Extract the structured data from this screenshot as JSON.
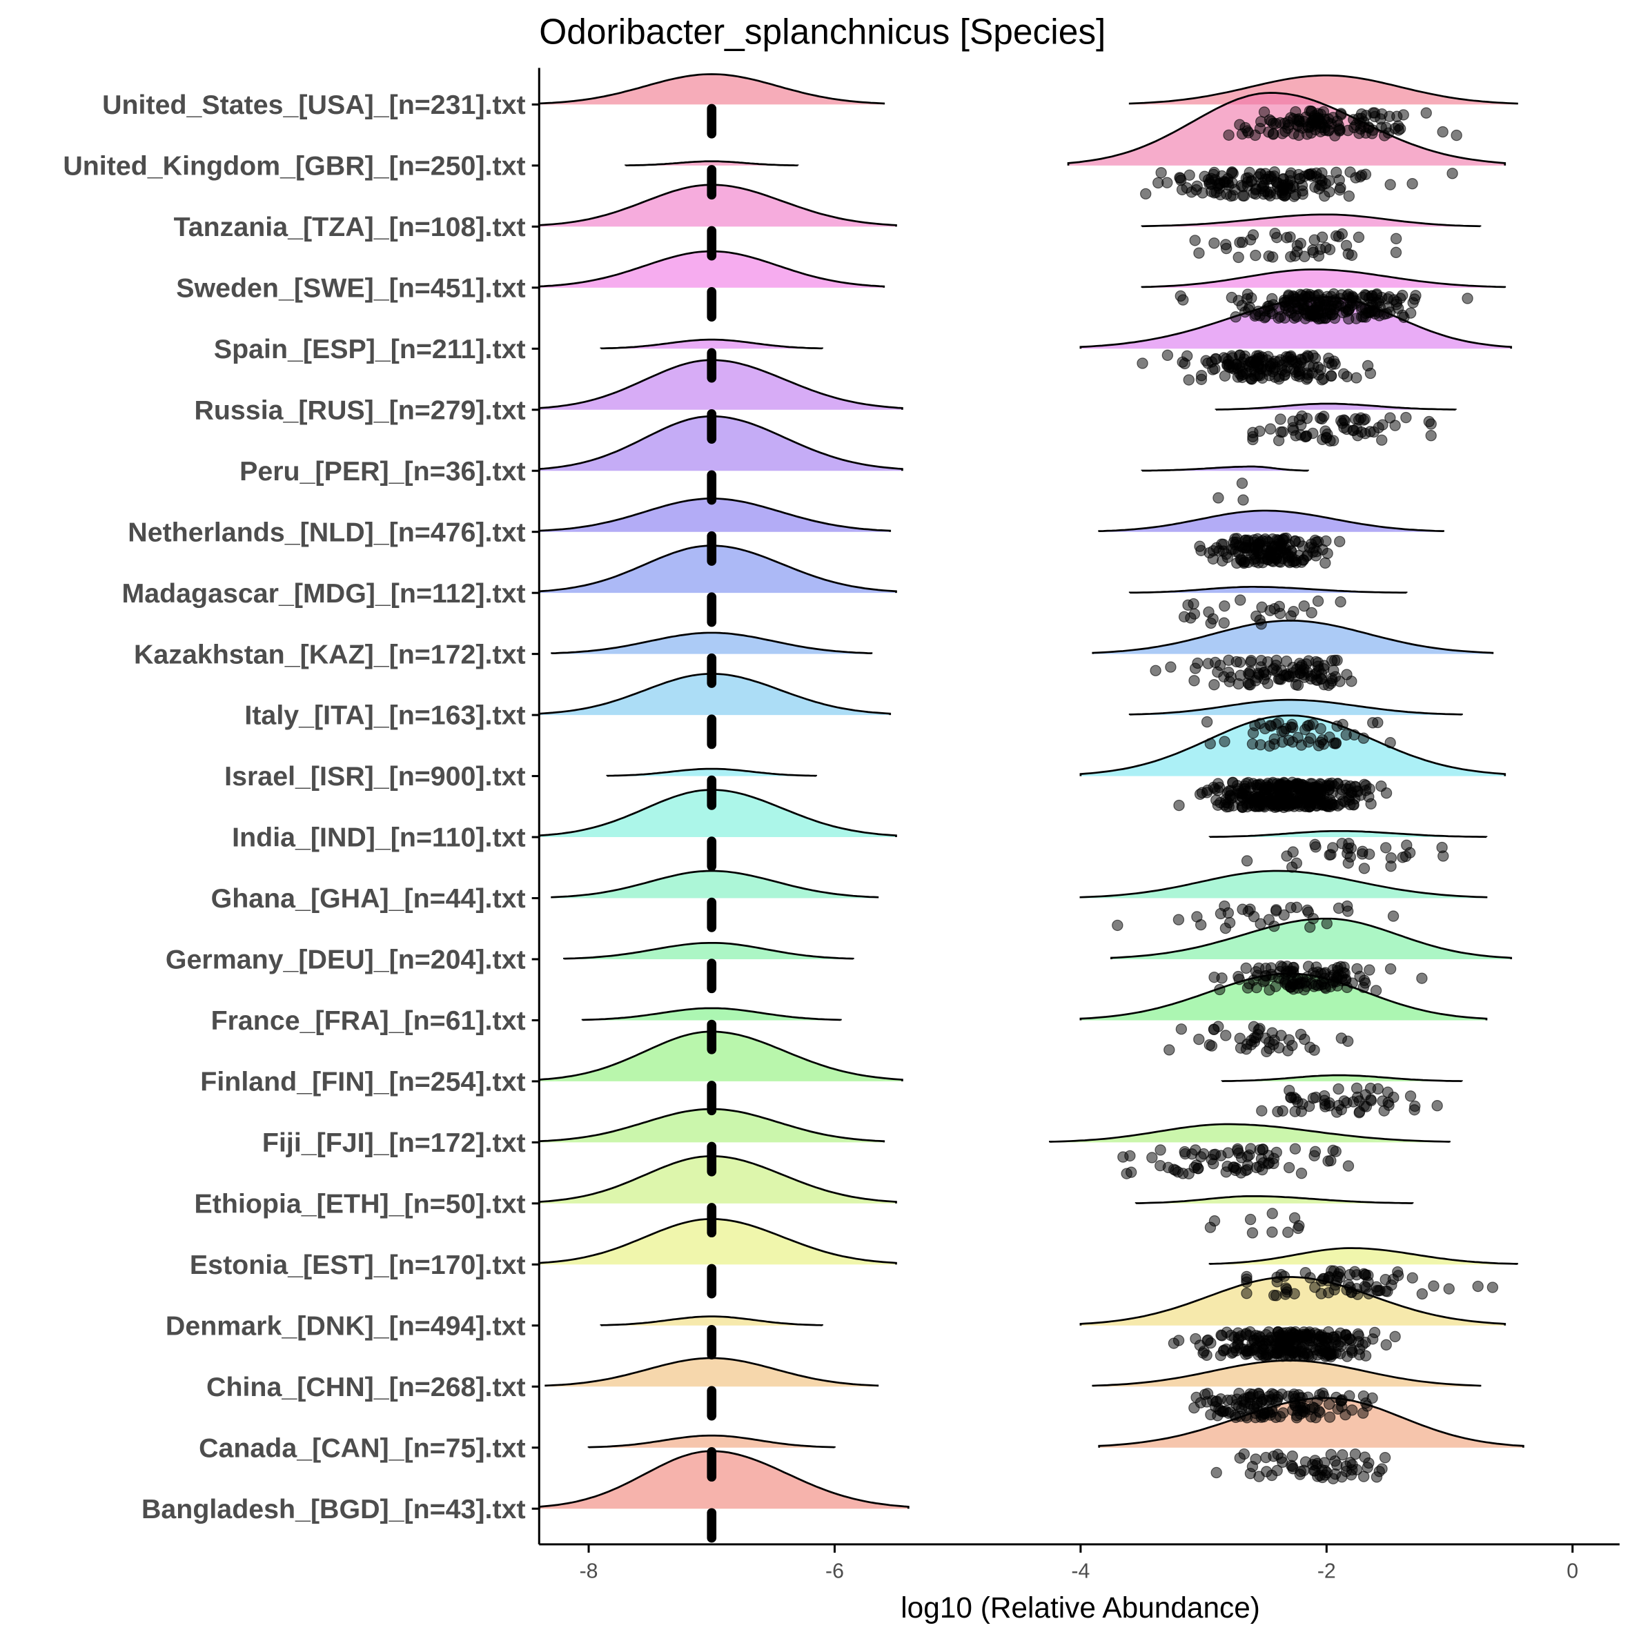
{
  "chart_data": {
    "type": "ridgeline-raincloud",
    "title": "Odoribacter_splanchnicus [Species]",
    "xlabel": "log10 (Relative Abundance)",
    "ylabel": "",
    "xlim": [
      -8.4,
      0.4
    ],
    "xticks": [
      -8,
      -6,
      -4,
      -2,
      0
    ],
    "xtick_labels": [
      "-8",
      "-6",
      "-4",
      "-2",
      "0"
    ],
    "grid": false,
    "zero_value_position": -7,
    "rows": [
      {
        "label": "United_States_[USA]_[n=231].txt",
        "n": 231,
        "zero_density": {
          "height": 0.5,
          "range": [
            -8.4,
            -5.6
          ]
        },
        "nonzero_density": {
          "peak": -2.0,
          "range": [
            -3.6,
            -0.45
          ],
          "height": 0.48
        },
        "points": {
          "mean": -2.0,
          "sd": 0.4,
          "count": 120
        }
      },
      {
        "label": "United_Kingdom_[GBR]_[n=250].txt",
        "n": 250,
        "zero_density": {
          "height": 0.07,
          "range": [
            -7.7,
            -6.3
          ]
        },
        "nonzero_density": {
          "peak": -2.45,
          "range": [
            -4.1,
            -0.55
          ],
          "height": 1.2
        },
        "points": {
          "mean": -2.5,
          "sd": 0.4,
          "count": 150
        }
      },
      {
        "label": "Tanzania_[TZA]_[n=108].txt",
        "n": 108,
        "zero_density": {
          "height": 0.69,
          "range": [
            -8.4,
            -5.5
          ]
        },
        "nonzero_density": {
          "peak": -2.0,
          "range": [
            -3.5,
            -0.75
          ],
          "height": 0.2
        },
        "points": {
          "mean": -2.1,
          "sd": 0.4,
          "count": 40
        }
      },
      {
        "label": "Sweden_[SWE]_[n=451].txt",
        "n": 451,
        "zero_density": {
          "height": 0.6,
          "range": [
            -8.4,
            -5.6
          ]
        },
        "nonzero_density": {
          "peak": -2.1,
          "range": [
            -3.5,
            -0.55
          ],
          "height": 0.3
        },
        "points": {
          "mean": -2.0,
          "sd": 0.35,
          "count": 200
        }
      },
      {
        "label": "Spain_[ESP]_[n=211].txt",
        "n": 211,
        "zero_density": {
          "height": 0.15,
          "range": [
            -7.9,
            -6.1
          ]
        },
        "nonzero_density": {
          "peak": -2.0,
          "range": [
            -4.0,
            -0.5
          ],
          "height": 0.85
        },
        "points": {
          "mean": -2.5,
          "sd": 0.35,
          "count": 150
        }
      },
      {
        "label": "Russia_[RUS]_[n=279].txt",
        "n": 279,
        "zero_density": {
          "height": 0.82,
          "range": [
            -8.4,
            -5.45
          ]
        },
        "nonzero_density": {
          "peak": -2.0,
          "range": [
            -2.9,
            -0.95
          ],
          "height": 0.1
        },
        "points": {
          "mean": -2.0,
          "sd": 0.35,
          "count": 60
        }
      },
      {
        "label": "Peru_[PER]_[n=36].txt",
        "n": 36,
        "zero_density": {
          "height": 0.9,
          "range": [
            -8.4,
            -5.45
          ]
        },
        "nonzero_density": {
          "peak": -2.6,
          "range": [
            -3.5,
            -2.15
          ],
          "height": 0.07
        },
        "points": {
          "mean": -2.9,
          "sd": 0.2,
          "count": 3
        }
      },
      {
        "label": "Netherlands_[NLD]_[n=476].txt",
        "n": 476,
        "zero_density": {
          "height": 0.55,
          "range": [
            -8.4,
            -5.55
          ]
        },
        "nonzero_density": {
          "peak": -2.5,
          "range": [
            -3.85,
            -1.05
          ],
          "height": 0.35
        },
        "points": {
          "mean": -2.5,
          "sd": 0.25,
          "count": 150
        }
      },
      {
        "label": "Madagascar_[MDG]_[n=112].txt",
        "n": 112,
        "zero_density": {
          "height": 0.78,
          "range": [
            -8.4,
            -5.5
          ]
        },
        "nonzero_density": {
          "peak": -2.6,
          "range": [
            -3.6,
            -1.35
          ],
          "height": 0.1
        },
        "points": {
          "mean": -2.6,
          "sd": 0.4,
          "count": 25
        }
      },
      {
        "label": "Kazakhstan_[KAZ]_[n=172].txt",
        "n": 172,
        "zero_density": {
          "height": 0.35,
          "range": [
            -8.3,
            -5.7
          ]
        },
        "nonzero_density": {
          "peak": -2.3,
          "range": [
            -3.9,
            -0.65
          ],
          "height": 0.55
        },
        "points": {
          "mean": -2.4,
          "sd": 0.35,
          "count": 100
        }
      },
      {
        "label": "Italy_[ITA]_[n=163].txt",
        "n": 163,
        "zero_density": {
          "height": 0.68,
          "range": [
            -8.4,
            -5.55
          ]
        },
        "nonzero_density": {
          "peak": -2.3,
          "range": [
            -3.6,
            -0.9
          ],
          "height": 0.25
        },
        "points": {
          "mean": -2.3,
          "sd": 0.35,
          "count": 50
        }
      },
      {
        "label": "Israel_[ISR]_[n=900].txt",
        "n": 900,
        "zero_density": {
          "height": 0.12,
          "range": [
            -7.85,
            -6.15
          ]
        },
        "nonzero_density": {
          "peak": -2.3,
          "range": [
            -4.0,
            -0.55
          ],
          "height": 1.0
        },
        "points": {
          "mean": -2.3,
          "sd": 0.3,
          "count": 350
        }
      },
      {
        "label": "India_[IND]_[n=110].txt",
        "n": 110,
        "zero_density": {
          "height": 0.78,
          "range": [
            -8.4,
            -5.5
          ]
        },
        "nonzero_density": {
          "peak": -1.9,
          "range": [
            -2.95,
            -0.7
          ],
          "height": 0.1
        },
        "points": {
          "mean": -1.8,
          "sd": 0.3,
          "count": 30
        }
      },
      {
        "label": "Ghana_[GHA]_[n=44].txt",
        "n": 44,
        "zero_density": {
          "height": 0.45,
          "range": [
            -8.3,
            -5.65
          ]
        },
        "nonzero_density": {
          "peak": -2.4,
          "range": [
            -4.0,
            -0.7
          ],
          "height": 0.45
        },
        "points": {
          "mean": -2.5,
          "sd": 0.4,
          "count": 30
        }
      },
      {
        "label": "Germany_[DEU]_[n=204].txt",
        "n": 204,
        "zero_density": {
          "height": 0.27,
          "range": [
            -8.2,
            -5.85
          ]
        },
        "nonzero_density": {
          "peak": -2.0,
          "range": [
            -3.75,
            -0.5
          ],
          "height": 0.67
        },
        "points": {
          "mean": -2.2,
          "sd": 0.3,
          "count": 110
        }
      },
      {
        "label": "France_[FRA]_[n=61].txt",
        "n": 61,
        "zero_density": {
          "height": 0.2,
          "range": [
            -8.05,
            -5.95
          ]
        },
        "nonzero_density": {
          "peak": -2.3,
          "range": [
            -4.0,
            -0.7
          ],
          "height": 0.77
        },
        "points": {
          "mean": -2.5,
          "sd": 0.3,
          "count": 40
        }
      },
      {
        "label": "Finland_[FIN]_[n=254].txt",
        "n": 254,
        "zero_density": {
          "height": 0.82,
          "range": [
            -8.4,
            -5.45
          ]
        },
        "nonzero_density": {
          "peak": -1.9,
          "range": [
            -2.85,
            -0.9
          ],
          "height": 0.1
        },
        "points": {
          "mean": -1.9,
          "sd": 0.35,
          "count": 50
        }
      },
      {
        "label": "Fiji_[FJI]_[n=172].txt",
        "n": 172,
        "zero_density": {
          "height": 0.55,
          "range": [
            -8.4,
            -5.6
          ]
        },
        "nonzero_density": {
          "peak": -2.8,
          "range": [
            -4.25,
            -1.0
          ],
          "height": 0.3
        },
        "points": {
          "mean": -2.6,
          "sd": 0.4,
          "count": 70
        }
      },
      {
        "label": "Ethiopia_[ETH]_[n=50].txt",
        "n": 50,
        "zero_density": {
          "height": 0.78,
          "range": [
            -8.4,
            -5.5
          ]
        },
        "nonzero_density": {
          "peak": -2.6,
          "range": [
            -3.55,
            -1.3
          ],
          "height": 0.12
        },
        "points": {
          "mean": -2.5,
          "sd": 0.3,
          "count": 10
        }
      },
      {
        "label": "Estonia_[EST]_[n=170].txt",
        "n": 170,
        "zero_density": {
          "height": 0.75,
          "range": [
            -8.4,
            -5.5
          ]
        },
        "nonzero_density": {
          "peak": -1.8,
          "range": [
            -2.95,
            -0.45
          ],
          "height": 0.27
        },
        "points": {
          "mean": -1.8,
          "sd": 0.4,
          "count": 70
        }
      },
      {
        "label": "Denmark_[DNK]_[n=494].txt",
        "n": 494,
        "zero_density": {
          "height": 0.15,
          "range": [
            -7.9,
            -6.1
          ]
        },
        "nonzero_density": {
          "peak": -2.3,
          "range": [
            -4.0,
            -0.55
          ],
          "height": 0.8
        },
        "points": {
          "mean": -2.3,
          "sd": 0.3,
          "count": 250
        }
      },
      {
        "label": "China_[CHN]_[n=268].txt",
        "n": 268,
        "zero_density": {
          "height": 0.47,
          "range": [
            -8.35,
            -5.65
          ]
        },
        "nonzero_density": {
          "peak": -2.3,
          "range": [
            -3.9,
            -0.75
          ],
          "height": 0.43
        },
        "points": {
          "mean": -2.4,
          "sd": 0.35,
          "count": 130
        }
      },
      {
        "label": "Canada_[CAN]_[n=75].txt",
        "n": 75,
        "zero_density": {
          "height": 0.2,
          "range": [
            -8.0,
            -6.0
          ]
        },
        "nonzero_density": {
          "peak": -2.0,
          "range": [
            -3.85,
            -0.4
          ],
          "height": 0.82
        },
        "points": {
          "mean": -2.1,
          "sd": 0.3,
          "count": 60
        }
      },
      {
        "label": "Bangladesh_[BGD]_[n=43].txt",
        "n": 43,
        "zero_density": {
          "height": 0.95,
          "range": [
            -8.4,
            -5.4
          ]
        },
        "nonzero_density": null,
        "points": null
      }
    ]
  }
}
